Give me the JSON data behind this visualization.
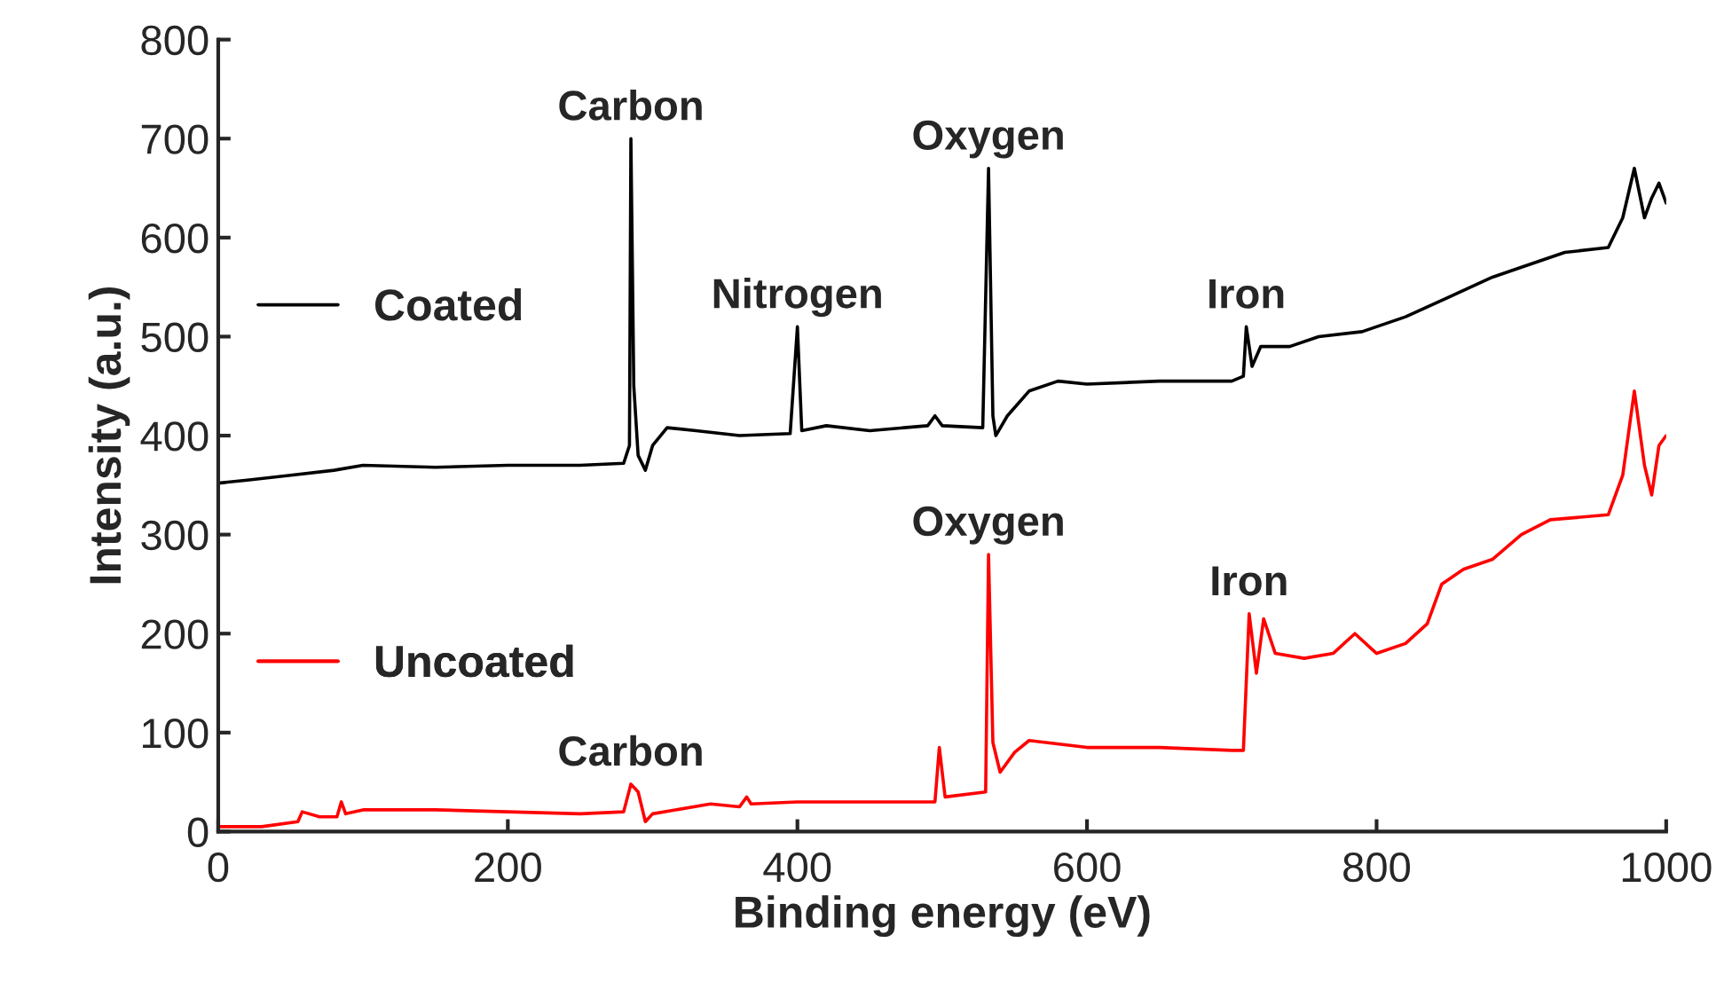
{
  "chart_data": {
    "type": "line",
    "xlabel": "Binding energy (eV)",
    "ylabel": "Intensity (a.u.)",
    "xlim": [
      0,
      1000
    ],
    "ylim": [
      0,
      800
    ],
    "xticks": [
      0,
      200,
      400,
      600,
      800,
      1000
    ],
    "yticks": [
      0,
      100,
      200,
      300,
      400,
      500,
      600,
      700,
      800
    ],
    "grid": false,
    "legend": "left",
    "marker": "none",
    "line_style": "solid",
    "series": [
      {
        "name": "Coated",
        "color": "#000000",
        "x": [
          0,
          20,
          50,
          80,
          100,
          150,
          200,
          250,
          280,
          284,
          285,
          287,
          290,
          295,
          300,
          310,
          330,
          360,
          395,
          400,
          403,
          420,
          450,
          490,
          495,
          500,
          528,
          532,
          535,
          537,
          545,
          560,
          580,
          600,
          650,
          700,
          708,
          710,
          714,
          720,
          740,
          760,
          790,
          820,
          850,
          880,
          900,
          930,
          960,
          970,
          978,
          985,
          990,
          995,
          1000
        ],
        "values": [
          352,
          355,
          360,
          365,
          370,
          368,
          370,
          370,
          372,
          390,
          700,
          450,
          380,
          365,
          390,
          408,
          405,
          400,
          402,
          510,
          405,
          410,
          405,
          410,
          420,
          410,
          408,
          670,
          420,
          400,
          420,
          445,
          455,
          452,
          455,
          455,
          460,
          510,
          470,
          490,
          490,
          500,
          505,
          520,
          540,
          560,
          570,
          585,
          590,
          620,
          670,
          620,
          640,
          655,
          635
        ]
      },
      {
        "name": "Uncoated",
        "color": "#ff0000",
        "x": [
          0,
          30,
          55,
          58,
          70,
          82,
          85,
          88,
          100,
          150,
          200,
          250,
          280,
          285,
          290,
          295,
          300,
          340,
          360,
          365,
          368,
          400,
          450,
          495,
          498,
          502,
          530,
          532,
          535,
          540,
          550,
          560,
          600,
          650,
          700,
          708,
          712,
          717,
          722,
          730,
          750,
          770,
          785,
          800,
          820,
          835,
          845,
          860,
          880,
          900,
          920,
          960,
          970,
          978,
          985,
          990,
          995,
          1000
        ],
        "values": [
          5,
          5,
          10,
          20,
          15,
          15,
          30,
          18,
          22,
          22,
          20,
          18,
          20,
          48,
          40,
          10,
          18,
          28,
          25,
          35,
          28,
          30,
          30,
          30,
          85,
          35,
          40,
          280,
          90,
          60,
          80,
          92,
          85,
          85,
          82,
          82,
          220,
          160,
          215,
          180,
          175,
          180,
          200,
          180,
          190,
          210,
          250,
          265,
          275,
          300,
          315,
          320,
          360,
          445,
          370,
          340,
          390,
          400
        ]
      }
    ],
    "annotations": [
      {
        "text": "Carbon",
        "x": 285,
        "y": 700
      },
      {
        "text": "Nitrogen",
        "x": 400,
        "y": 510
      },
      {
        "text": "Oxygen",
        "x": 532,
        "y": 670
      },
      {
        "text": "Iron",
        "x": 710,
        "y": 510
      },
      {
        "text": "Oxygen",
        "x": 532,
        "y": 280
      },
      {
        "text": "Iron",
        "x": 712,
        "y": 220
      },
      {
        "text": "Carbon",
        "x": 285,
        "y": 48
      }
    ]
  }
}
